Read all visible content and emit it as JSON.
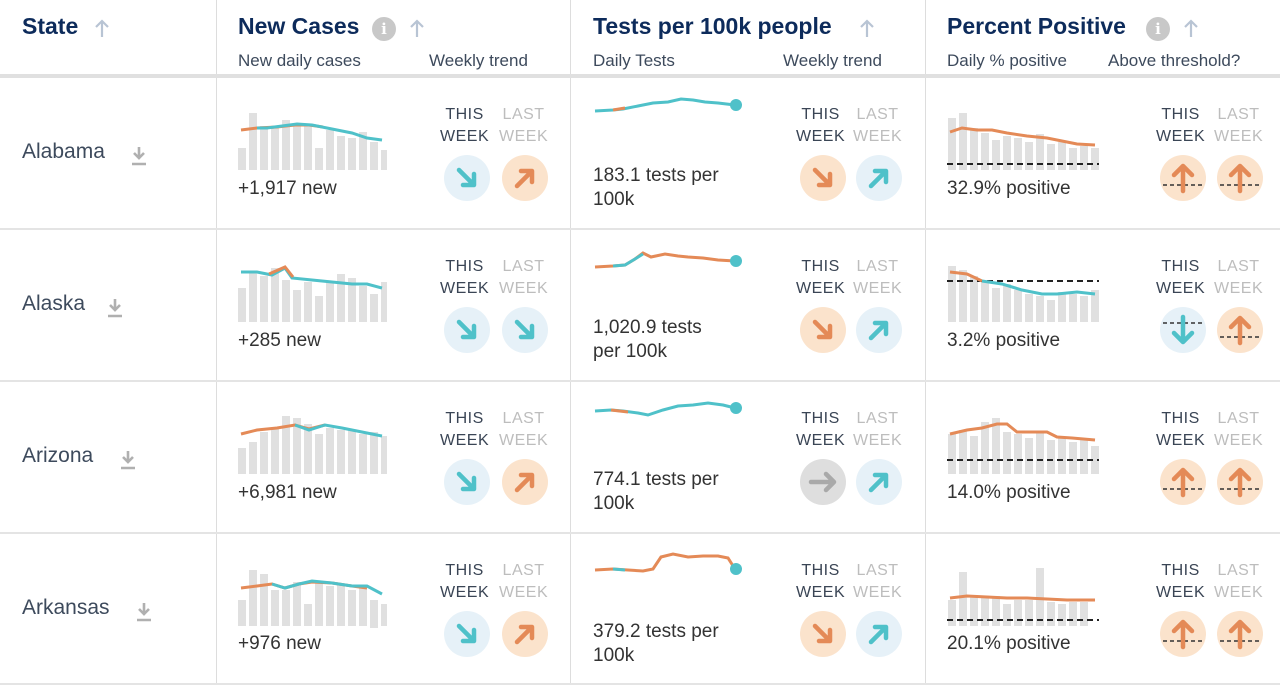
{
  "headers": {
    "state": "State",
    "new_cases": "New Cases",
    "new_cases_sub1": "New daily cases",
    "new_cases_sub2": "Weekly trend",
    "tests": "Tests per 100k people",
    "tests_sub1": "Daily Tests",
    "tests_sub2": "Weekly trend",
    "positive": "Percent Positive",
    "positive_sub1": "Daily % positive",
    "positive_sub2": "Above threshold?",
    "info_glyph": "i"
  },
  "week_labels": {
    "this_1": "THIS",
    "this_2": "WEEK",
    "last_1": "LAST",
    "last_2": "WEEK"
  },
  "colors": {
    "teal": "#4fc1c9",
    "orange": "#e48a57",
    "gray_arrow": "#a9a9a9",
    "bar": "#e0e0e0",
    "navy": "#0d2b5b"
  },
  "icons": [
    "sort-arrow-icon",
    "info-icon",
    "download-icon",
    "trend-arrow-icon"
  ],
  "rows": [
    {
      "state": "Alabama",
      "cases_text": "+1,917 new",
      "tests_line1": "183.1 tests per",
      "tests_line2": "100k",
      "positive_text": "32.9% positive",
      "case_trend": {
        "this_week": "down",
        "last_week": "up"
      },
      "test_trend": {
        "this_week": "down",
        "last_week": "up"
      },
      "threshold": {
        "this_week": "above",
        "last_week": "above"
      }
    },
    {
      "state": "Alaska",
      "cases_text": "+285 new",
      "tests_line1": "1,020.9 tests",
      "tests_line2": "per 100k",
      "positive_text": "3.2% positive",
      "case_trend": {
        "this_week": "down",
        "last_week": "down"
      },
      "test_trend": {
        "this_week": "down",
        "last_week": "up"
      },
      "threshold": {
        "this_week": "below",
        "last_week": "above"
      }
    },
    {
      "state": "Arizona",
      "cases_text": "+6,981 new",
      "tests_line1": "774.1 tests per",
      "tests_line2": "100k",
      "positive_text": "14.0% positive",
      "case_trend": {
        "this_week": "down",
        "last_week": "up"
      },
      "test_trend": {
        "this_week": "flat",
        "last_week": "up"
      },
      "threshold": {
        "this_week": "above",
        "last_week": "above"
      }
    },
    {
      "state": "Arkansas",
      "cases_text": "+976 new",
      "tests_line1": "379.2 tests per",
      "tests_line2": "100k",
      "positive_text": "20.1% positive",
      "case_trend": {
        "this_week": "down",
        "last_week": "up"
      },
      "test_trend": {
        "this_week": "down",
        "last_week": "up"
      },
      "threshold": {
        "this_week": "above",
        "last_week": "above"
      }
    }
  ]
}
